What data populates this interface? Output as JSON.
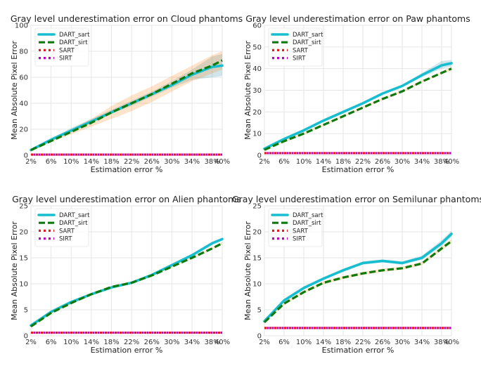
{
  "chart_data": [
    {
      "type": "line",
      "title": "Gray level underestimation error on Cloud phantoms",
      "xlabel": "Estimation error %",
      "ylabel": "Mean Absolute Pixel Error",
      "categories": [
        "2%",
        "6%",
        "10%",
        "14%",
        "18%",
        "22%",
        "26%",
        "30%",
        "34%",
        "38%",
        "40%"
      ],
      "x": [
        2,
        6,
        10,
        14,
        18,
        22,
        26,
        30,
        34,
        38,
        40
      ],
      "xlim": [
        2,
        40
      ],
      "ylim": [
        0,
        100
      ],
      "yticks": [
        0,
        20,
        40,
        60,
        80,
        100
      ],
      "grid": true,
      "legend_position": "top-left",
      "series": [
        {
          "name": "DART_sart",
          "values": [
            4,
            12,
            19,
            26,
            33,
            40,
            47,
            54,
            62,
            68,
            69
          ],
          "band": [
            [
              4,
              5
            ],
            [
              11,
              13
            ],
            [
              18,
              21
            ],
            [
              25,
              28
            ],
            [
              32,
              35
            ],
            [
              38,
              42
            ],
            [
              45,
              49
            ],
            [
              52,
              57
            ],
            [
              58,
              66
            ],
            [
              60,
              76
            ],
            [
              61,
              78
            ]
          ]
        },
        {
          "name": "DART_sirt",
          "values": [
            4,
            11,
            18,
            25,
            33,
            40,
            47,
            55,
            63,
            69,
            73
          ],
          "band": [
            [
              3,
              5
            ],
            [
              10,
              13
            ],
            [
              16,
              20
            ],
            [
              22,
              28
            ],
            [
              28,
              38
            ],
            [
              34,
              46
            ],
            [
              41,
              53
            ],
            [
              49,
              61
            ],
            [
              57,
              69
            ],
            [
              63,
              77
            ],
            [
              66,
              80
            ]
          ]
        },
        {
          "name": "SART",
          "values": [
            0.5,
            0.5,
            0.5,
            0.5,
            0.5,
            0.5,
            0.5,
            0.5,
            0.5,
            0.5,
            0.5
          ]
        },
        {
          "name": "SIRT",
          "values": [
            0.5,
            0.5,
            0.5,
            0.5,
            0.5,
            0.5,
            0.5,
            0.5,
            0.5,
            0.5,
            0.5
          ]
        }
      ]
    },
    {
      "type": "line",
      "title": "Gray level underestimation error on Paw phantoms",
      "xlabel": "Estimation error %",
      "ylabel": "Mean Absolute Pixel Error",
      "categories": [
        "2%",
        "6%",
        "10%",
        "14%",
        "18%",
        "22%",
        "26%",
        "30%",
        "34%",
        "38%",
        "40%"
      ],
      "x": [
        2,
        6,
        10,
        14,
        18,
        22,
        26,
        30,
        34,
        38,
        40
      ],
      "xlim": [
        2,
        40
      ],
      "ylim": [
        0,
        60
      ],
      "yticks": [
        0,
        10,
        20,
        30,
        40,
        50,
        60
      ],
      "grid": true,
      "legend_position": "top-left",
      "series": [
        {
          "name": "DART_sart",
          "values": [
            3,
            7.5,
            11.5,
            16,
            20,
            24,
            28.5,
            32,
            37,
            41.5,
            42.5
          ],
          "band": [
            [
              2.6,
              3.4
            ],
            [
              7,
              8
            ],
            [
              11,
              12
            ],
            [
              15.5,
              16.5
            ],
            [
              19.5,
              20.5
            ],
            [
              23.5,
              24.5
            ],
            [
              28,
              29
            ],
            [
              31.5,
              32.5
            ],
            [
              36,
              38
            ],
            [
              40,
              43.5
            ],
            [
              41,
              44
            ]
          ]
        },
        {
          "name": "DART_sirt",
          "values": [
            2.5,
            6.5,
            10,
            14,
            18,
            22,
            26,
            29.5,
            34,
            38,
            40
          ],
          "band": [
            [
              2.2,
              2.8
            ],
            [
              6,
              7
            ],
            [
              9.5,
              10.5
            ],
            [
              13.5,
              14.5
            ],
            [
              17.5,
              18.5
            ],
            [
              21.5,
              22.5
            ],
            [
              25.5,
              26.5
            ],
            [
              29,
              30
            ],
            [
              33.5,
              34.5
            ],
            [
              37.5,
              38.5
            ],
            [
              39,
              41
            ]
          ]
        },
        {
          "name": "SART",
          "values": [
            1,
            1,
            1,
            1,
            1,
            1,
            1,
            1,
            1,
            1,
            1
          ]
        },
        {
          "name": "SIRT",
          "values": [
            1,
            1,
            1,
            1,
            1,
            1,
            1,
            1,
            1,
            1,
            1
          ]
        }
      ]
    },
    {
      "type": "line",
      "title": "Gray level underestimation error on Alien phantoms",
      "xlabel": "Estimation error %",
      "ylabel": "Mean Absolute Pixel Error",
      "categories": [
        "2%",
        "6%",
        "10%",
        "14%",
        "18%",
        "22%",
        "26%",
        "30%",
        "34%",
        "38%",
        "40%"
      ],
      "x": [
        2,
        6,
        10,
        14,
        18,
        22,
        26,
        30,
        34,
        38,
        40
      ],
      "xlim": [
        2,
        40
      ],
      "ylim": [
        0,
        25
      ],
      "yticks": [
        0,
        5,
        10,
        15,
        20,
        25
      ],
      "grid": true,
      "legend_position": "top-left",
      "series": [
        {
          "name": "DART_sart",
          "values": [
            2,
            4.6,
            6.5,
            8,
            9.3,
            10.2,
            11.7,
            13.6,
            15.5,
            17.8,
            18.6
          ],
          "band": [
            [
              1.8,
              2.2
            ],
            [
              4.4,
              4.8
            ],
            [
              6.3,
              6.7
            ],
            [
              7.8,
              8.2
            ],
            [
              9.1,
              9.5
            ],
            [
              10,
              10.4
            ],
            [
              11.5,
              11.9
            ],
            [
              13.4,
              13.8
            ],
            [
              15.3,
              15.7
            ],
            [
              17.6,
              18
            ],
            [
              18.4,
              18.8
            ]
          ]
        },
        {
          "name": "DART_sirt",
          "values": [
            1.8,
            4.4,
            6.3,
            8,
            9.4,
            10.2,
            11.6,
            13.3,
            15,
            16.8,
            17.8
          ],
          "band": [
            [
              1.6,
              2
            ],
            [
              4.2,
              4.6
            ],
            [
              6.1,
              6.5
            ],
            [
              7.8,
              8.2
            ],
            [
              9.2,
              9.6
            ],
            [
              10,
              10.4
            ],
            [
              11.4,
              11.8
            ],
            [
              13.1,
              13.5
            ],
            [
              14.8,
              15.2
            ],
            [
              16.6,
              17
            ],
            [
              17.6,
              18
            ]
          ]
        },
        {
          "name": "SART",
          "values": [
            0.6,
            0.6,
            0.6,
            0.6,
            0.6,
            0.6,
            0.6,
            0.6,
            0.6,
            0.6,
            0.6
          ]
        },
        {
          "name": "SIRT",
          "values": [
            0.6,
            0.6,
            0.6,
            0.6,
            0.6,
            0.6,
            0.6,
            0.6,
            0.6,
            0.6,
            0.6
          ]
        }
      ]
    },
    {
      "type": "line",
      "title": "Gray level underestimation error on Semilunar phantoms",
      "xlabel": "Estimation error %",
      "ylabel": "Mean Absolute Pixel Error",
      "categories": [
        "2%",
        "6%",
        "10%",
        "14%",
        "18%",
        "22%",
        "26%",
        "30%",
        "34%",
        "38%",
        "40%"
      ],
      "x": [
        2,
        6,
        10,
        14,
        18,
        22,
        26,
        30,
        34,
        38,
        40
      ],
      "xlim": [
        2,
        40
      ],
      "ylim": [
        0,
        25
      ],
      "yticks": [
        0,
        5,
        10,
        15,
        20,
        25
      ],
      "grid": true,
      "legend_position": "top-left",
      "series": [
        {
          "name": "DART_sart",
          "values": [
            2.8,
            6.8,
            9.2,
            11,
            12.6,
            14,
            14.4,
            14,
            15,
            17.8,
            19.6
          ],
          "band": [
            [
              2.6,
              3
            ],
            [
              6.5,
              7.1
            ],
            [
              8.9,
              9.5
            ],
            [
              10.7,
              11.3
            ],
            [
              12.3,
              12.9
            ],
            [
              13.7,
              14.3
            ],
            [
              14.1,
              14.7
            ],
            [
              13.7,
              14.3
            ],
            [
              14.6,
              15.4
            ],
            [
              17.2,
              18.4
            ],
            [
              19,
              20.2
            ]
          ]
        },
        {
          "name": "DART_sirt",
          "values": [
            2.6,
            6.2,
            8.4,
            10.2,
            11.2,
            12,
            12.6,
            13,
            13.9,
            16.8,
            18.2
          ],
          "band": [
            [
              2.4,
              2.8
            ],
            [
              5.9,
              6.5
            ],
            [
              8.1,
              8.7
            ],
            [
              9.9,
              10.5
            ],
            [
              10.9,
              11.5
            ],
            [
              11.7,
              12.3
            ],
            [
              12.3,
              12.9
            ],
            [
              12.7,
              13.3
            ],
            [
              13.6,
              14.2
            ],
            [
              16.4,
              17.2
            ],
            [
              17.8,
              18.6
            ]
          ]
        },
        {
          "name": "SART",
          "values": [
            1.5,
            1.5,
            1.5,
            1.5,
            1.5,
            1.5,
            1.5,
            1.5,
            1.5,
            1.5,
            1.5
          ]
        },
        {
          "name": "SIRT",
          "values": [
            1.5,
            1.5,
            1.5,
            1.5,
            1.5,
            1.5,
            1.5,
            1.5,
            1.5,
            1.5,
            1.5
          ]
        }
      ]
    }
  ],
  "styles": {
    "DART_sart": {
      "color": "#17becf",
      "band": "#2a8da6"
    },
    "DART_sirt": {
      "color": "#0c7a0c",
      "band": "#ff7f0e"
    },
    "SART": {
      "color": "#e41a1c"
    },
    "SIRT": {
      "color": "#c000c0"
    },
    "grid_color": "#e4e4e4",
    "axis_text_color": "#333333"
  }
}
